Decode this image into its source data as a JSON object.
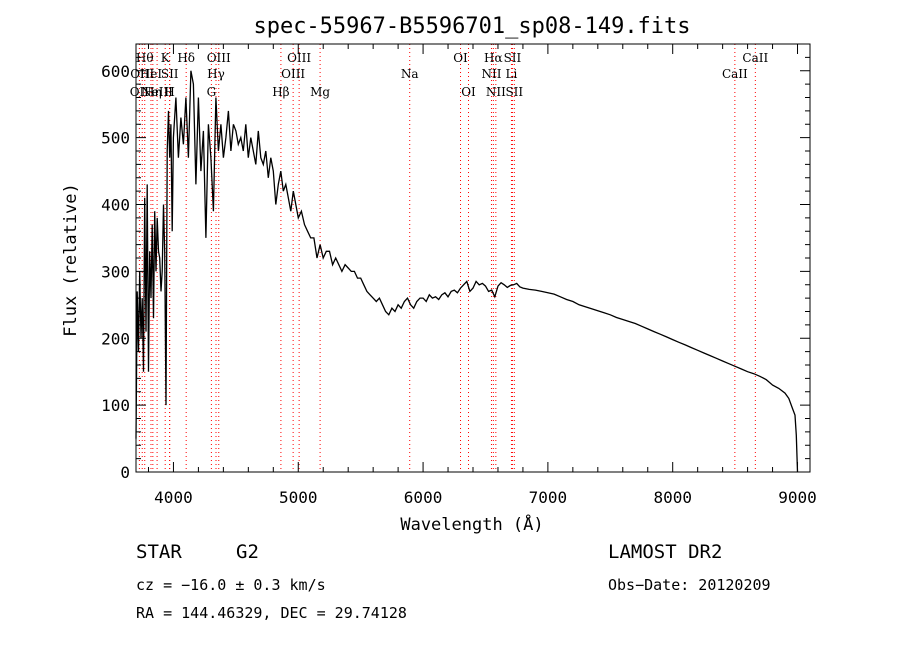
{
  "chart_data": {
    "type": "line",
    "title": "spec-55967-B5596701_sp08-149.fits",
    "xlabel": "Wavelength (Å)",
    "ylabel": "Flux (relative)",
    "xlim": [
      3700,
      9100
    ],
    "ylim": [
      0,
      640
    ],
    "xticks": [
      4000,
      5000,
      6000,
      7000,
      8000,
      9000
    ],
    "yticks": [
      0,
      100,
      200,
      300,
      400,
      500,
      600
    ],
    "grid": false,
    "line_color": "#000000",
    "marker_color": "#ff0000",
    "series": [
      {
        "x": [
          3700,
          3710,
          3720,
          3730,
          3740,
          3750,
          3760,
          3770,
          3780,
          3790,
          3800,
          3810,
          3820,
          3830,
          3840,
          3850,
          3860,
          3870,
          3880,
          3890,
          3900,
          3910,
          3920,
          3930,
          3940,
          3950,
          3960,
          3970,
          3980,
          3990,
          4000,
          4020,
          4040,
          4060,
          4080,
          4100,
          4120,
          4140,
          4160,
          4180,
          4200,
          4220,
          4240,
          4260,
          4280,
          4300,
          4320,
          4340,
          4360,
          4380,
          4400,
          4420,
          4440,
          4460,
          4480,
          4500,
          4520,
          4540,
          4560,
          4580,
          4600,
          4620,
          4640,
          4660,
          4680,
          4700,
          4720,
          4740,
          4760,
          4780,
          4800,
          4820,
          4840,
          4860,
          4880,
          4900,
          4920,
          4940,
          4960,
          4980,
          5000,
          5025,
          5050,
          5075,
          5100,
          5125,
          5150,
          5175,
          5200,
          5225,
          5250,
          5275,
          5300,
          5325,
          5350,
          5375,
          5400,
          5425,
          5450,
          5475,
          5500,
          5525,
          5550,
          5575,
          5600,
          5625,
          5650,
          5675,
          5700,
          5725,
          5750,
          5775,
          5800,
          5825,
          5850,
          5875,
          5900,
          5925,
          5950,
          5975,
          6000,
          6025,
          6050,
          6075,
          6100,
          6125,
          6150,
          6175,
          6200,
          6225,
          6250,
          6275,
          6300,
          6325,
          6350,
          6375,
          6400,
          6425,
          6450,
          6475,
          6500,
          6525,
          6550,
          6575,
          6600,
          6625,
          6650,
          6675,
          6700,
          6725,
          6750,
          6775,
          6800,
          6850,
          6900,
          6950,
          7000,
          7050,
          7100,
          7150,
          7200,
          7250,
          7300,
          7350,
          7400,
          7450,
          7500,
          7550,
          7600,
          7650,
          7700,
          7750,
          7800,
          7850,
          7900,
          7950,
          8000,
          8050,
          8100,
          8150,
          8200,
          8250,
          8300,
          8350,
          8400,
          8450,
          8500,
          8550,
          8600,
          8650,
          8700,
          8750,
          8800,
          8850,
          8900,
          8930,
          8960,
          8980,
          8990,
          9000
        ],
        "y": [
          50,
          270,
          180,
          300,
          200,
          260,
          150,
          410,
          210,
          430,
          150,
          330,
          260,
          370,
          230,
          390,
          300,
          380,
          330,
          320,
          270,
          300,
          400,
          330,
          100,
          480,
          540,
          470,
          520,
          360,
          500,
          560,
          470,
          530,
          490,
          560,
          470,
          600,
          580,
          430,
          560,
          450,
          510,
          350,
          520,
          470,
          390,
          560,
          480,
          520,
          470,
          500,
          540,
          480,
          520,
          510,
          490,
          500,
          480,
          520,
          470,
          500,
          480,
          460,
          510,
          470,
          460,
          480,
          440,
          470,
          450,
          400,
          430,
          450,
          420,
          430,
          410,
          390,
          420,
          400,
          380,
          390,
          370,
          360,
          350,
          350,
          320,
          340,
          320,
          330,
          330,
          310,
          320,
          310,
          300,
          310,
          305,
          300,
          300,
          290,
          290,
          280,
          270,
          265,
          260,
          255,
          260,
          250,
          240,
          235,
          245,
          240,
          250,
          245,
          255,
          260,
          250,
          245,
          255,
          260,
          260,
          255,
          265,
          260,
          262,
          258,
          265,
          268,
          262,
          270,
          272,
          268,
          275,
          280,
          285,
          270,
          275,
          285,
          280,
          282,
          278,
          270,
          272,
          262,
          278,
          283,
          280,
          276,
          279,
          280,
          282,
          277,
          275,
          273,
          272,
          270,
          268,
          266,
          262,
          258,
          255,
          250,
          247,
          244,
          241,
          238,
          235,
          231,
          228,
          225,
          222,
          218,
          214,
          210,
          206,
          202,
          198,
          194,
          190,
          186,
          182,
          178,
          174,
          170,
          166,
          162,
          158,
          154,
          150,
          147,
          143,
          138,
          130,
          125,
          118,
          110,
          95,
          85,
          55,
          0
        ]
      }
    ],
    "lines": [
      {
        "x": 3727,
        "labels": [
          "OII"
        ],
        "row": 2
      },
      {
        "x": 3750,
        "labels": [
          "OIII"
        ],
        "row": 1
      },
      {
        "x": 3770,
        "labels": [
          "Hθ"
        ],
        "row": 0
      },
      {
        "x": 3820,
        "labels": [
          "HeI"
        ],
        "row": 1
      },
      {
        "x": 3835,
        "labels": [
          "Hη"
        ],
        "row": 2
      },
      {
        "x": 3869,
        "labels": [
          "NeIII"
        ],
        "row": 2
      },
      {
        "x": 3934,
        "labels": [
          "K"
        ],
        "row": 0
      },
      {
        "x": 3969,
        "labels": [
          "H"
        ],
        "row": 2
      },
      {
        "x": 3970,
        "labels": [
          "SII"
        ],
        "row": 1
      },
      {
        "x": 4102,
        "labels": [
          "Hδ"
        ],
        "row": 0
      },
      {
        "x": 4304,
        "labels": [
          "G"
        ],
        "row": 2
      },
      {
        "x": 4341,
        "labels": [
          "Hγ"
        ],
        "row": 1
      },
      {
        "x": 4363,
        "labels": [
          "OIII"
        ],
        "row": 0
      },
      {
        "x": 4861,
        "labels": [
          "Hβ"
        ],
        "row": 2
      },
      {
        "x": 4959,
        "labels": [
          "OIII"
        ],
        "row": 1
      },
      {
        "x": 5007,
        "labels": [
          "OIII"
        ],
        "row": 0
      },
      {
        "x": 5175,
        "labels": [
          "Mg"
        ],
        "row": 2
      },
      {
        "x": 5893,
        "labels": [
          "Na"
        ],
        "row": 1
      },
      {
        "x": 6300,
        "labels": [
          "OI"
        ],
        "row": 0
      },
      {
        "x": 6364,
        "labels": [
          "OI"
        ],
        "row": 2
      },
      {
        "x": 6548,
        "labels": [
          "NII"
        ],
        "row": 1
      },
      {
        "x": 6563,
        "labels": [
          "Hα"
        ],
        "row": 0
      },
      {
        "x": 6583,
        "labels": [
          "NII"
        ],
        "row": 2
      },
      {
        "x": 6708,
        "labels": [
          "Li"
        ],
        "row": 1
      },
      {
        "x": 6716,
        "labels": [
          "SII"
        ],
        "row": 0
      },
      {
        "x": 6731,
        "labels": [
          "SII"
        ],
        "row": 2
      },
      {
        "x": 8498,
        "labels": [
          "CaII"
        ],
        "row": 1
      },
      {
        "x": 8662,
        "labels": [
          "CaII"
        ],
        "row": 0
      }
    ]
  },
  "info": {
    "class": "STAR",
    "subclass": "G2",
    "survey": "LAMOST DR2",
    "cz": "cz = −16.0 ± 0.3 km/s",
    "obs_date": "Obs−Date: 20120209",
    "coords": "RA = 144.46329, DEC =  29.74128"
  }
}
